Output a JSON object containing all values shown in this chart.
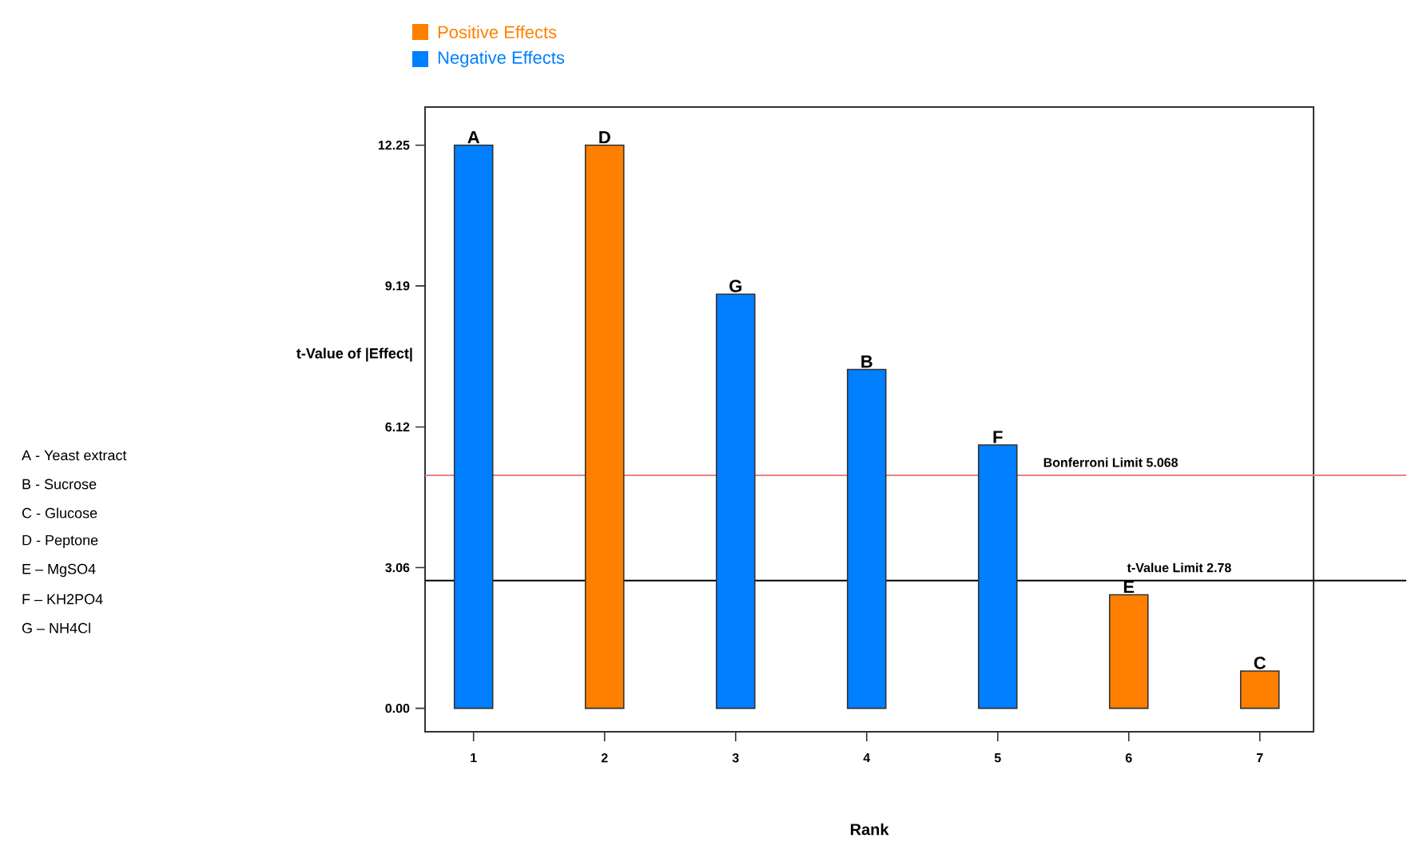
{
  "chart_data": {
    "type": "bar",
    "xlabel": "Rank",
    "ylabel": "t-Value of |Effect|",
    "categories": [
      "1",
      "2",
      "3",
      "4",
      "5",
      "6",
      "7"
    ],
    "series": [
      {
        "name": "Positive Effects",
        "color": "#ff8000",
        "values": [
          null,
          12.25,
          null,
          null,
          null,
          2.47,
          0.81
        ]
      },
      {
        "name": "Negative Effects",
        "color": "#0080ff",
        "values": [
          12.25,
          null,
          9.01,
          7.37,
          5.73,
          null,
          null
        ]
      }
    ],
    "ylim": [
      -0.51,
      13.08
    ],
    "yticks": [
      {
        "value": 0,
        "label": "0.00"
      },
      {
        "value": 3.06,
        "label": "3.06"
      },
      {
        "value": 6.12,
        "label": "6.12"
      },
      {
        "value": 9.19,
        "label": "9.19"
      },
      {
        "value": 12.25,
        "label": "12.25"
      }
    ],
    "ref_lines": [
      {
        "axis": "y",
        "value": 5.068,
        "label": "Bonferroni Limit 5.068",
        "color": "#f08080"
      },
      {
        "axis": "y",
        "value": 2.78,
        "label": "t-Value Limit 2.78",
        "color": "#000000"
      }
    ],
    "legend": "top left",
    "annotations": [
      {
        "text": "A",
        "x": "1",
        "y": 12.25
      },
      {
        "text": "D",
        "x": "2",
        "y": 12.25
      },
      {
        "text": "G",
        "x": "3",
        "y": 9.01
      },
      {
        "text": "B",
        "x": "4",
        "y": 7.37
      },
      {
        "text": "F",
        "x": "5",
        "y": 5.73
      },
      {
        "text": "E",
        "x": "6",
        "y": 2.47
      },
      {
        "text": "C",
        "x": "7",
        "y": 0.81
      },
      "A - Yeast extract",
      "B - Sucrose",
      "C - Glucose",
      "D - Peptone",
      "E – MgSO4",
      "F – KH2PO4",
      "G – NH4Cl"
    ]
  }
}
